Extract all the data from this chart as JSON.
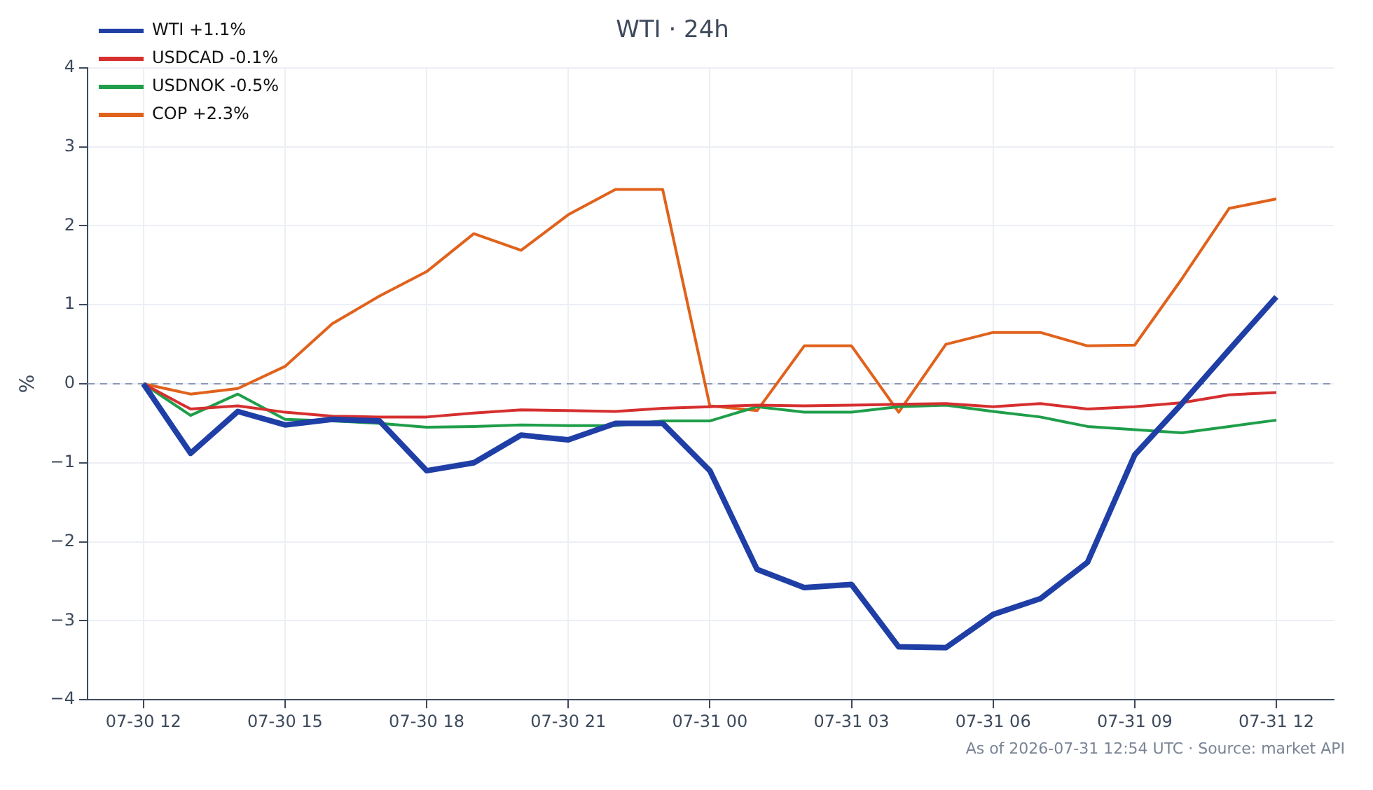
{
  "chart_data": {
    "type": "line",
    "title": "WTI · 24h",
    "ylabel": "%",
    "x": [
      "2026-07-30T12:00",
      "2026-07-30T13:00",
      "2026-07-30T14:00",
      "2026-07-30T15:00",
      "2026-07-30T16:00",
      "2026-07-30T17:00",
      "2026-07-30T18:00",
      "2026-07-30T19:00",
      "2026-07-30T20:00",
      "2026-07-30T21:00",
      "2026-07-30T22:00",
      "2026-07-30T23:00",
      "2026-07-31T00:00",
      "2026-07-31T01:00",
      "2026-07-31T02:00",
      "2026-07-31T03:00",
      "2026-07-31T04:00",
      "2026-07-31T05:00",
      "2026-07-31T06:00",
      "2026-07-31T07:00",
      "2026-07-31T08:00",
      "2026-07-31T09:00",
      "2026-07-31T10:00",
      "2026-07-31T11:00",
      "2026-07-31T12:00"
    ],
    "series": [
      {
        "name": "WTI +1.1%",
        "color": "#1f3fa6",
        "values": [
          0,
          -0.88,
          -0.35,
          -0.52,
          -0.45,
          -0.47,
          -1.1,
          -1.0,
          -0.65,
          -0.71,
          -0.5,
          -0.5,
          -1.1,
          -2.35,
          -2.58,
          -2.54,
          -3.33,
          -3.34,
          -2.92,
          -2.72,
          -2.26,
          -0.9,
          -0.25,
          0.43,
          1.1
        ]
      },
      {
        "name": "USDCAD -0.1%",
        "color": "#d62f2f",
        "values": [
          0,
          -0.32,
          -0.28,
          -0.36,
          -0.41,
          -0.42,
          -0.42,
          -0.37,
          -0.33,
          -0.34,
          -0.35,
          -0.31,
          -0.29,
          -0.27,
          -0.28,
          -0.27,
          -0.26,
          -0.25,
          -0.29,
          -0.25,
          -0.32,
          -0.29,
          -0.24,
          -0.14,
          -0.11
        ]
      },
      {
        "name": "USDNOK -0.5%",
        "color": "#1f9e4a",
        "values": [
          0,
          -0.4,
          -0.13,
          -0.45,
          -0.47,
          -0.5,
          -0.55,
          -0.54,
          -0.52,
          -0.53,
          -0.53,
          -0.47,
          -0.47,
          -0.29,
          -0.36,
          -0.36,
          -0.29,
          -0.27,
          -0.35,
          -0.42,
          -0.54,
          -0.58,
          -0.62,
          -0.54,
          -0.46
        ]
      },
      {
        "name": "COP +2.3%",
        "color": "#e0621c",
        "values": [
          0,
          -0.13,
          -0.06,
          0.22,
          0.76,
          1.11,
          1.42,
          1.9,
          1.69,
          2.14,
          2.46,
          2.46,
          -0.28,
          -0.34,
          0.48,
          0.48,
          -0.36,
          0.5,
          0.65,
          0.65,
          0.48,
          0.49,
          1.33,
          2.22,
          2.34
        ]
      }
    ],
    "xlim": [
      "2026-07-30T10:49",
      "2026-07-31T13:13"
    ],
    "xticks": [
      {
        "value": "2026-07-30T12:00",
        "label": "07-30 12"
      },
      {
        "value": "2026-07-30T15:00",
        "label": "07-30 15"
      },
      {
        "value": "2026-07-30T18:00",
        "label": "07-30 18"
      },
      {
        "value": "2026-07-30T21:00",
        "label": "07-30 21"
      },
      {
        "value": "2026-07-31T00:00",
        "label": "07-31 00"
      },
      {
        "value": "2026-07-31T03:00",
        "label": "07-31 03"
      },
      {
        "value": "2026-07-31T06:00",
        "label": "07-31 06"
      },
      {
        "value": "2026-07-31T09:00",
        "label": "07-31 09"
      },
      {
        "value": "2026-07-31T12:00",
        "label": "07-31 12"
      }
    ],
    "ylim": [
      -4,
      4
    ],
    "yticks": [
      {
        "value": -4,
        "label": "−4"
      },
      {
        "value": -3,
        "label": "−3"
      },
      {
        "value": -2,
        "label": "−2"
      },
      {
        "value": -1,
        "label": "−1"
      },
      0,
      1,
      2,
      3,
      4
    ],
    "ref_lines": [
      {
        "axis": "y",
        "value": 0,
        "color": "#8a9ab5",
        "line_style": "dashed"
      }
    ],
    "grid": true,
    "legend": "top left",
    "marker": "none",
    "line_style": "solid",
    "annotations": [
      "As of 2026-07-31 12:54 UTC · Source: market API"
    ]
  }
}
